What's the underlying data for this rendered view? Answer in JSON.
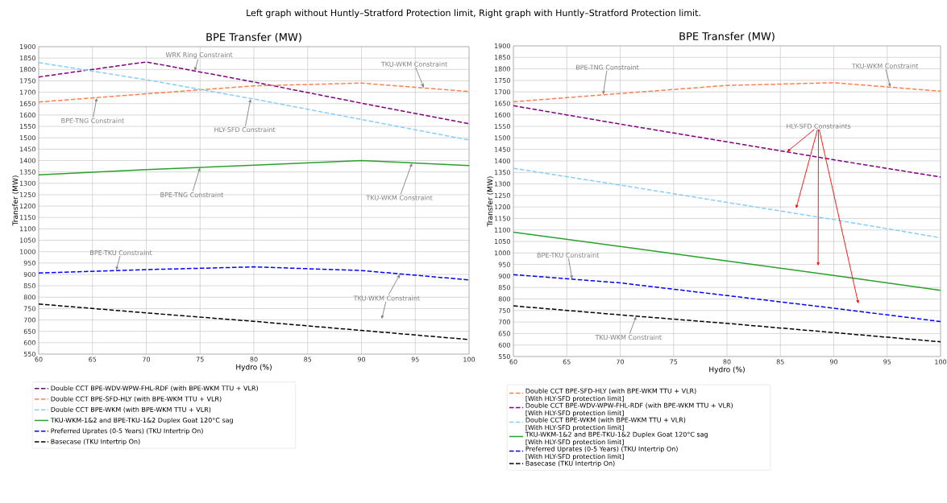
{
  "chart_data": [
    {
      "type": "line",
      "title": "BPE Transfer (MW)",
      "xlabel": "Hydro (%)",
      "ylabel": "Transfer (MW)",
      "x": [
        60,
        70,
        80,
        90,
        100
      ],
      "xlim": [
        60,
        100
      ],
      "ylim": [
        550,
        1900
      ],
      "xticks": [
        60,
        65,
        70,
        75,
        80,
        85,
        90,
        95,
        100
      ],
      "yticks": [
        550,
        600,
        650,
        700,
        750,
        800,
        850,
        900,
        950,
        1000,
        1050,
        1100,
        1150,
        1200,
        1250,
        1300,
        1350,
        1400,
        1450,
        1500,
        1550,
        1600,
        1650,
        1700,
        1750,
        1800,
        1850,
        1900
      ],
      "grid": true,
      "legend": "bottom",
      "series": [
        {
          "name": "Double CCT BPE-WDV-WPW-FHL-RDF (with BPE-WKM TTU + VLR)",
          "color": "#800080",
          "line_style": "dashed",
          "values": [
            1767,
            1833,
            1745,
            1652,
            1562
          ]
        },
        {
          "name": "Double CCT BPE-SFD-HLY (with BPE-WKM TTU + VLR)",
          "color": "#ff7f50",
          "line_style": "dashed",
          "values": [
            1657,
            1693,
            1728,
            1740,
            1703
          ]
        },
        {
          "name": "Double CCT BPE-WKM (with BPE-WKM TTU + VLR)",
          "color": "#87cefa",
          "line_style": "dashed",
          "values": [
            1830,
            1755,
            1670,
            1580,
            1490
          ]
        },
        {
          "name": "TKU-WKM-1&2 and BPE-TKU-1&2 Duplex Goat 120°C sag",
          "color": "#2ca02c",
          "line_style": "solid",
          "values": [
            1337,
            1360,
            1380,
            1400,
            1378
          ]
        },
        {
          "name": "Preferred Uprates (0-5 Years) (TKU Intertrip On)",
          "color": "#0000ff",
          "line_style": "dashed",
          "values": [
            906,
            921,
            933,
            917,
            876
          ]
        },
        {
          "name": "Basecase (TKU Intertrip On)",
          "color": "#000000",
          "line_style": "dashed",
          "values": [
            770,
            731,
            694,
            654,
            614
          ]
        }
      ],
      "annotations": [
        "Left graph without Huntly–Stratford Protection limit, Right graph with Huntly–Stratford Protection limit.",
        {
          "text": "WRK Ring Constraint",
          "x": 74.5,
          "y": 1793
        },
        {
          "text": "TKU-WKM Constraint",
          "x": 95.8,
          "y": 1719
        },
        {
          "text": "BPE-TNG Constraint",
          "x": 65.4,
          "y": 1676
        },
        {
          "text": "HLY-SFD Constraint",
          "x": 79.7,
          "y": 1672
        },
        {
          "text": "BPE-TNG Constraint",
          "x": 75.0,
          "y": 1370
        },
        {
          "text": "TKU-WKM Constraint",
          "x": 94.7,
          "y": 1390
        },
        {
          "text": "BPE-TKU Constraint",
          "x": 67.2,
          "y": 917
        },
        {
          "text": "TKU-WKM Constraint",
          "x": 93.6,
          "y": 902
        }
      ]
    },
    {
      "type": "line",
      "title": "BPE Transfer (MW)",
      "xlabel": "Hydro (%)",
      "ylabel": "Transfer (MW)",
      "x": [
        60,
        70,
        80,
        90,
        100
      ],
      "xlim": [
        60,
        100
      ],
      "ylim": [
        550,
        1900
      ],
      "xticks": [
        60,
        65,
        70,
        75,
        80,
        85,
        90,
        95,
        100
      ],
      "yticks": [
        550,
        600,
        650,
        700,
        750,
        800,
        850,
        900,
        950,
        1000,
        1050,
        1100,
        1150,
        1200,
        1250,
        1300,
        1350,
        1400,
        1450,
        1500,
        1550,
        1600,
        1650,
        1700,
        1750,
        1800,
        1850,
        1900
      ],
      "grid": true,
      "legend": "bottom",
      "series": [
        {
          "name": "Double CCT BPE-SFD-HLY (with BPE-WKM TTU + VLR)\n[With HLY-SFD protection limit]",
          "color": "#ff7f50",
          "line_style": "dashed",
          "values": [
            1657,
            1693,
            1728,
            1740,
            1703
          ]
        },
        {
          "name": "Double CCT BPE-WDV-WPW-FHL-RDF (with BPE-WKM TTU + VLR)\n[With HLY-SFD protection limit]",
          "color": "#800080",
          "line_style": "dashed",
          "values": [
            1640,
            1560,
            1483,
            1405,
            1330
          ]
        },
        {
          "name": "Double CCT BPE-WKM (with BPE-WKM TTU + VLR)\n[With HLY-SFD protection limit]",
          "color": "#87cefa",
          "line_style": "dashed",
          "values": [
            1368,
            1295,
            1220,
            1145,
            1066
          ]
        },
        {
          "name": "TKU-WKM-1&2 and BPE-TKU-1&2 Duplex Goat 120°C sag\n[With HLY-SFD protection limit]",
          "color": "#2ca02c",
          "line_style": "solid",
          "values": [
            1090,
            1028,
            965,
            902,
            838
          ]
        },
        {
          "name": "Preferred Uprates (0-5 Years) (TKU Intertrip On)\n[With HLY-SFD protection limit]",
          "color": "#0000ff",
          "line_style": "dashed",
          "values": [
            906,
            870,
            815,
            760,
            702
          ]
        },
        {
          "name": "Basecase (TKU Intertrip On)",
          "color": "#000000",
          "line_style": "dashed",
          "values": [
            770,
            731,
            694,
            654,
            614
          ]
        }
      ],
      "annotations": [
        {
          "text": "BPE-TNG Constraint",
          "x": 68.4,
          "y": 1687
        },
        {
          "text": "TKU-WKM Constraint",
          "x": 95.3,
          "y": 1720
        },
        {
          "text": "HLY-SFD Constraints",
          "x": 85.6,
          "y": 1439
        },
        {
          "text": "BPE-TKU Constraint",
          "x": 65.5,
          "y": 886
        },
        {
          "text": "TKU-WKM Constraint",
          "x": 71.5,
          "y": 726
        }
      ]
    }
  ]
}
